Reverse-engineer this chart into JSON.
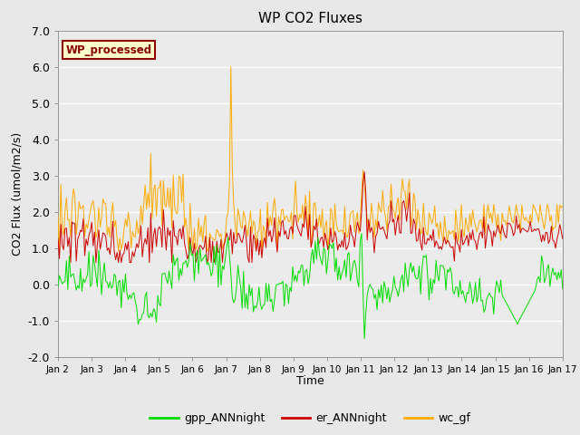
{
  "title": "WP CO2 Fluxes",
  "ylabel": "CO2 Flux (umol/m2/s)",
  "xlabel": "Time",
  "ylim": [
    -2.0,
    7.0
  ],
  "yticks": [
    -2.0,
    -1.0,
    0.0,
    1.0,
    2.0,
    3.0,
    4.0,
    5.0,
    6.0,
    7.0
  ],
  "ytick_labels": [
    "-2.0",
    "-1.0",
    "0.0",
    "1.0",
    "2.0",
    "3.0",
    "4.0",
    "5.0",
    "6.0",
    "7.0"
  ],
  "xtick_labels": [
    "Jan 2",
    "Jan 3",
    "Jan 4",
    "Jan 5",
    "Jan 6",
    "Jan 7",
    "Jan 8",
    "Jan 9",
    "Jan 10",
    "Jan 11",
    "Jan 12",
    "Jan 13",
    "Jan 14",
    "Jan 15",
    "Jan 16",
    "Jan 17"
  ],
  "fig_bg_color": "#e8e8e8",
  "plot_bg_color": "#ebebeb",
  "grid_color": "#ffffff",
  "annotation_text": "WP_processed",
  "annotation_bg": "#ffffcc",
  "annotation_border": "#8b0000",
  "annotation_text_color": "#8b0000",
  "gpp_color": "#00dd00",
  "er_color": "#cc0000",
  "wc_color": "#ffaa00",
  "legend_gpp": "gpp_ANNnight",
  "legend_er": "er_ANNnight",
  "legend_wc": "wc_gf",
  "linewidth": 0.7,
  "n_days": 15,
  "pts_per_day": 24
}
